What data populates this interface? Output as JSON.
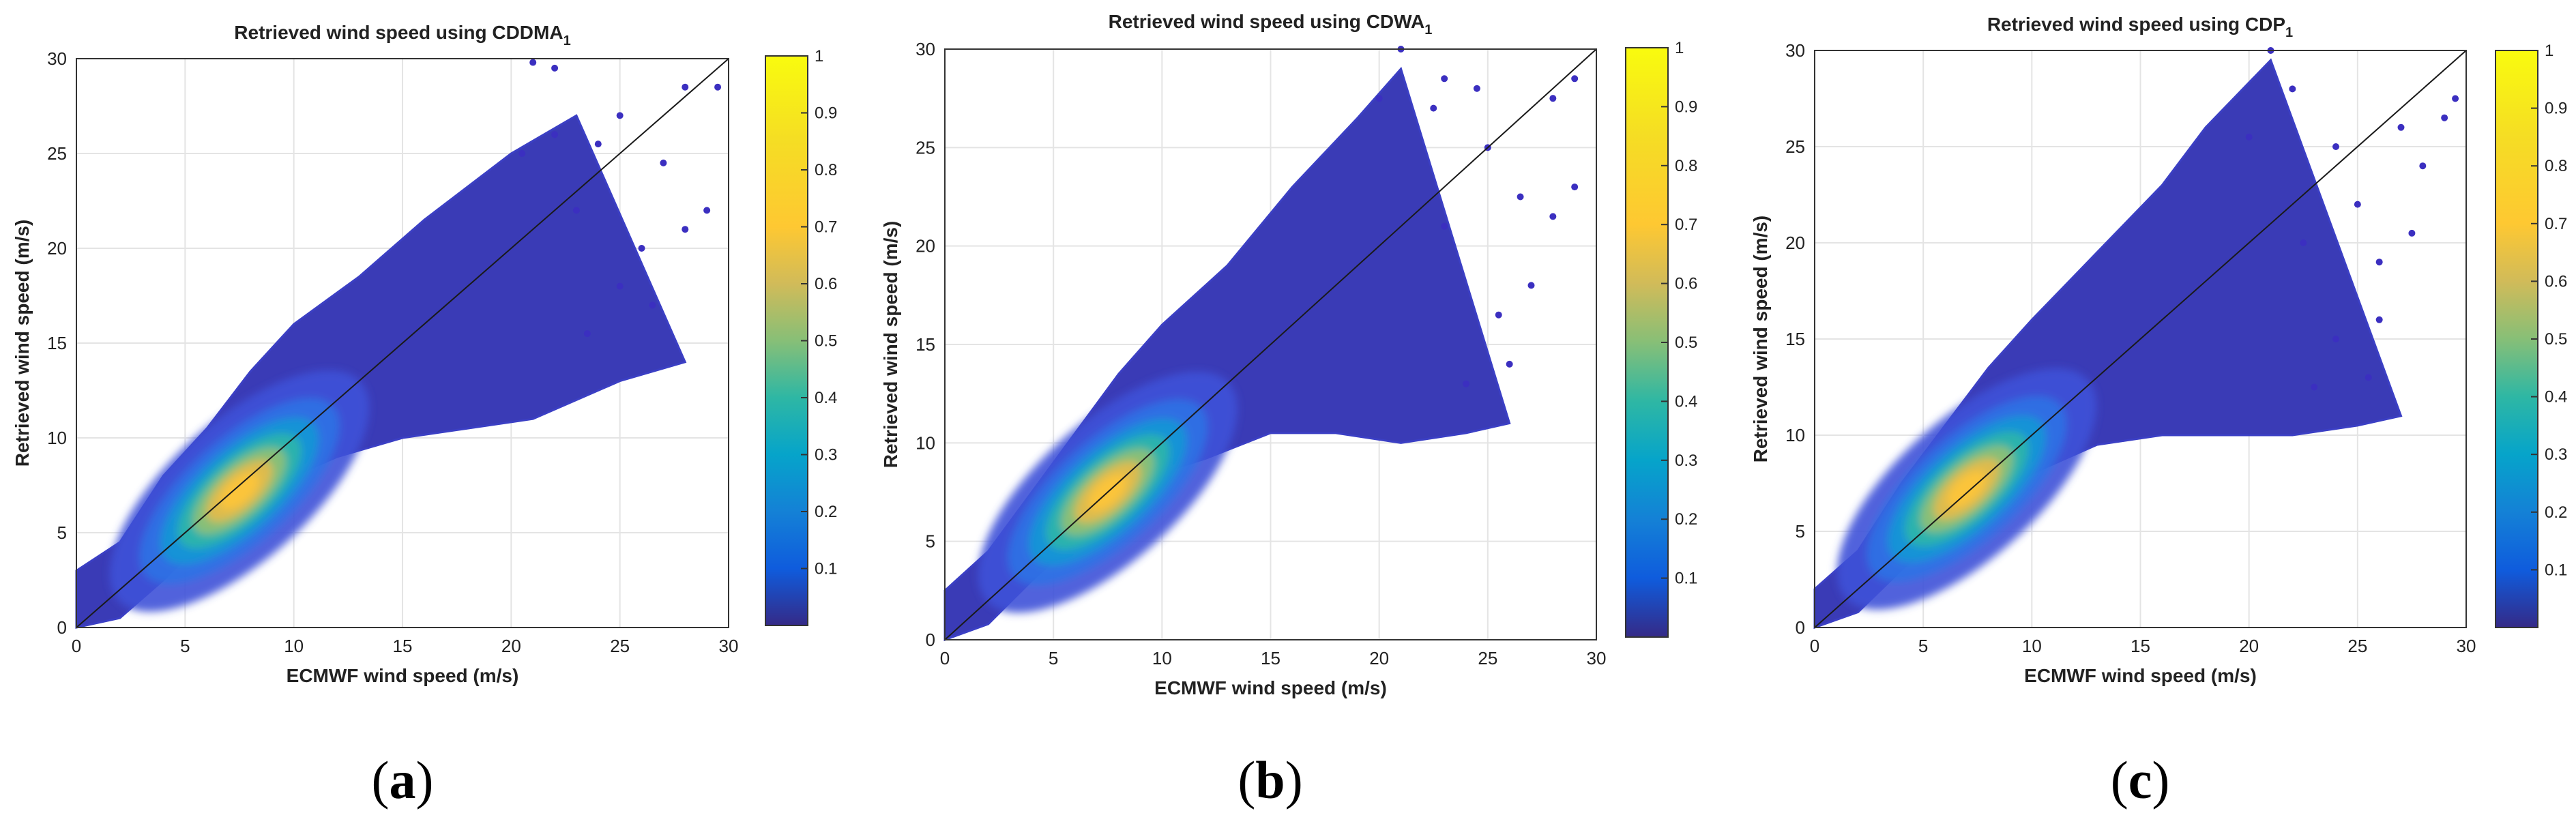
{
  "chart_data": [
    {
      "type": "scatter",
      "panel_label": "a",
      "title": "Retrieved wind speed using CDDMA",
      "title_subscript": "1",
      "xlabel": "ECMWF wind speed (m/s)",
      "ylabel": "Retrieved wind speed (m/s)",
      "xlim": [
        0,
        30
      ],
      "ylim": [
        0,
        30
      ],
      "xticks": [
        0,
        5,
        10,
        15,
        20,
        25,
        30
      ],
      "yticks": [
        0,
        5,
        10,
        15,
        20,
        25,
        30
      ],
      "grid": true,
      "reference_line": [
        [
          0,
          0
        ],
        [
          30,
          30
        ]
      ],
      "colorbar": {
        "min": 0,
        "max": 1,
        "ticks": [
          0.1,
          0.2,
          0.3,
          0.4,
          0.5,
          0.6,
          0.7,
          0.8,
          0.9,
          1
        ],
        "colormap": "parula"
      },
      "density_peak": {
        "x": 7.5,
        "y": 7.2,
        "relative_density": 1
      },
      "envelope": {
        "upper": [
          [
            0,
            3
          ],
          [
            2,
            4.5
          ],
          [
            4,
            8
          ],
          [
            6,
            10.5
          ],
          [
            8,
            13.5
          ],
          [
            10,
            16
          ],
          [
            13,
            18.5
          ],
          [
            16,
            21.5
          ],
          [
            20,
            25
          ],
          [
            23,
            27
          ]
        ],
        "lower": [
          [
            0,
            0
          ],
          [
            2,
            0.5
          ],
          [
            4,
            2.5
          ],
          [
            6,
            4.8
          ],
          [
            8,
            6.5
          ],
          [
            10,
            8
          ],
          [
            12,
            9
          ],
          [
            15,
            10
          ],
          [
            18,
            10.5
          ],
          [
            21,
            11
          ],
          [
            25,
            13
          ],
          [
            28,
            14
          ]
        ]
      },
      "outliers": [
        [
          21,
          29.8
        ],
        [
          22,
          29.5
        ],
        [
          25,
          27
        ],
        [
          28,
          28.5
        ],
        [
          29.5,
          28.5
        ],
        [
          27,
          24.5
        ],
        [
          26,
          20
        ],
        [
          28,
          21
        ],
        [
          22,
          26
        ],
        [
          24,
          25.5
        ],
        [
          26.5,
          17
        ],
        [
          23.5,
          15.5
        ],
        [
          25,
          18
        ],
        [
          23,
          22
        ],
        [
          20.5,
          25
        ],
        [
          29,
          22
        ]
      ]
    },
    {
      "type": "scatter",
      "panel_label": "b",
      "title": "Retrieved wind speed using CDWA",
      "title_subscript": "1",
      "xlabel": "ECMWF wind speed (m/s)",
      "ylabel": "Retrieved wind speed (m/s)",
      "xlim": [
        0,
        30
      ],
      "ylim": [
        0,
        30
      ],
      "xticks": [
        0,
        5,
        10,
        15,
        20,
        25,
        30
      ],
      "yticks": [
        0,
        5,
        10,
        15,
        20,
        25,
        30
      ],
      "grid": true,
      "reference_line": [
        [
          0,
          0
        ],
        [
          30,
          30
        ]
      ],
      "colorbar": {
        "min": 0,
        "max": 1,
        "ticks": [
          0.1,
          0.2,
          0.3,
          0.4,
          0.5,
          0.6,
          0.7,
          0.8,
          0.9,
          1
        ],
        "colormap": "parula"
      },
      "density_peak": {
        "x": 7.5,
        "y": 7.5,
        "relative_density": 1
      },
      "envelope": {
        "upper": [
          [
            0,
            2.5
          ],
          [
            2,
            4.5
          ],
          [
            4,
            7.5
          ],
          [
            6,
            10.5
          ],
          [
            8,
            13.5
          ],
          [
            10,
            16
          ],
          [
            13,
            19
          ],
          [
            16,
            23
          ],
          [
            19,
            26.5
          ],
          [
            21,
            29
          ]
        ],
        "lower": [
          [
            0,
            0
          ],
          [
            2,
            0.8
          ],
          [
            4,
            3
          ],
          [
            6,
            5
          ],
          [
            8,
            7
          ],
          [
            10,
            8.5
          ],
          [
            12,
            9.2
          ],
          [
            15,
            10.5
          ],
          [
            18,
            10.5
          ],
          [
            21,
            10
          ],
          [
            24,
            10.5
          ],
          [
            26,
            11
          ]
        ]
      },
      "outliers": [
        [
          21,
          30
        ],
        [
          23,
          28.5
        ],
        [
          24.5,
          28
        ],
        [
          28,
          27.5
        ],
        [
          29,
          28.5
        ],
        [
          26.5,
          22.5
        ],
        [
          28,
          21.5
        ],
        [
          25,
          25
        ],
        [
          22.5,
          27
        ],
        [
          27,
          18
        ],
        [
          25.5,
          16.5
        ],
        [
          24,
          13
        ],
        [
          26,
          14
        ],
        [
          23,
          21
        ],
        [
          20,
          27.5
        ],
        [
          29,
          23
        ]
      ]
    },
    {
      "type": "scatter",
      "panel_label": "c",
      "title": "Retrieved wind speed using CDP",
      "title_subscript": "1",
      "xlabel": "ECMWF wind speed (m/s)",
      "ylabel": "Retrieved wind speed (m/s)",
      "xlim": [
        0,
        30
      ],
      "ylim": [
        0,
        30
      ],
      "xticks": [
        0,
        5,
        10,
        15,
        20,
        25,
        30
      ],
      "yticks": [
        0,
        5,
        10,
        15,
        20,
        25,
        30
      ],
      "grid": true,
      "reference_line": [
        [
          0,
          0
        ],
        [
          30,
          30
        ]
      ],
      "colorbar": {
        "min": 0,
        "max": 1,
        "ticks": [
          0.1,
          0.2,
          0.3,
          0.4,
          0.5,
          0.6,
          0.7,
          0.8,
          0.9,
          1
        ],
        "colormap": "parula"
      },
      "density_peak": {
        "x": 7,
        "y": 7.2,
        "relative_density": 1
      },
      "envelope": {
        "upper": [
          [
            0,
            2
          ],
          [
            2,
            4
          ],
          [
            4,
            7.5
          ],
          [
            6,
            10.5
          ],
          [
            8,
            13.5
          ],
          [
            10,
            16
          ],
          [
            13,
            19.5
          ],
          [
            16,
            23
          ],
          [
            18,
            26
          ],
          [
            21,
            29.5
          ]
        ],
        "lower": [
          [
            0,
            0
          ],
          [
            2,
            0.8
          ],
          [
            4,
            3
          ],
          [
            6,
            5
          ],
          [
            8,
            6.5
          ],
          [
            10,
            8
          ],
          [
            13,
            9.5
          ],
          [
            16,
            10
          ],
          [
            19,
            10
          ],
          [
            22,
            10
          ],
          [
            25,
            10.5
          ],
          [
            27,
            11
          ]
        ]
      },
      "outliers": [
        [
          21,
          30
        ],
        [
          22,
          28
        ],
        [
          24,
          25
        ],
        [
          27,
          26
        ],
        [
          29.5,
          27.5
        ],
        [
          28,
          24
        ],
        [
          25,
          22
        ],
        [
          26,
          19
        ],
        [
          27.5,
          20.5
        ],
        [
          24,
          15
        ],
        [
          26,
          16
        ],
        [
          23,
          12.5
        ],
        [
          20,
          25.5
        ],
        [
          29,
          26.5
        ],
        [
          22.5,
          20
        ],
        [
          25.5,
          13
        ]
      ]
    }
  ],
  "captions": [
    "(a)",
    "(b)",
    "(c)"
  ]
}
